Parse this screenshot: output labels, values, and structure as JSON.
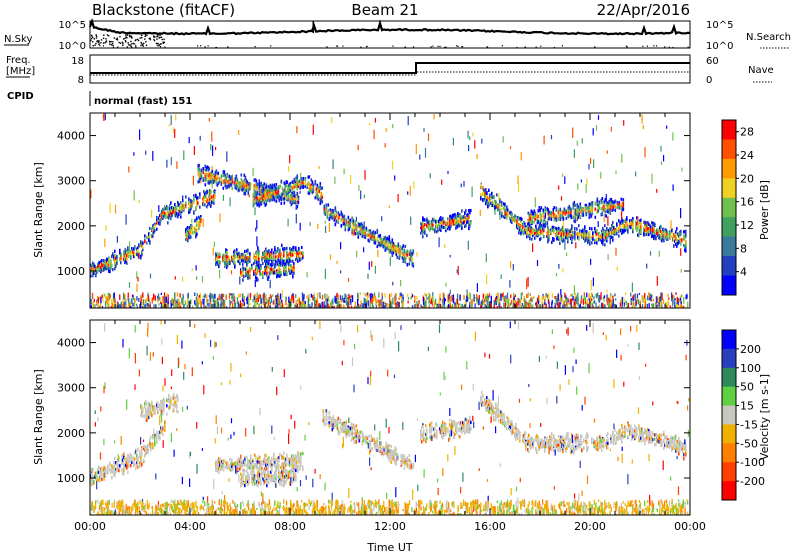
{
  "header": {
    "station": "Blackstone (fitACF)",
    "beam": "Beam 21",
    "date": "22/Apr/2016"
  },
  "top_panels": {
    "nsky_label": "N.Sky",
    "nsky_ticks": [
      "10^5",
      "10^0"
    ],
    "nsearch_label": "N.Search",
    "nsearch_ticks": [
      "10^5",
      "10^0"
    ],
    "freq_label": "Freq.",
    "freq_unit": "[MHz]",
    "freq_ticks": [
      "18",
      "8"
    ],
    "nave_label": "Nave",
    "nave_ticks": [
      "60",
      "0"
    ],
    "cpid_label": "CPID",
    "cpid_value": "normal (fast) 151"
  },
  "colors": {
    "power_scale": [
      "#0000ff",
      "#2040c0",
      "#3a7a9a",
      "#40a060",
      "#70c050",
      "#f0d020",
      "#ff9a00",
      "#ff5000",
      "#ff0000"
    ],
    "velocity_scale": [
      "#0000ff",
      "#2840c0",
      "#2e8a5a",
      "#60d040",
      "#c8c8c0",
      "#f0b000",
      "#ff8000",
      "#ff4000",
      "#ff0000"
    ],
    "ground_scatter": "#c8c8c0"
  },
  "chart_data": [
    {
      "type": "heatmap",
      "name": "power",
      "xlabel": "",
      "ylabel": "Slant Range [km]",
      "xlim": [
        "00:00",
        "24:00"
      ],
      "ylim": [
        180,
        4500
      ],
      "yticks": [
        "1000",
        "2000",
        "3000",
        "4000"
      ],
      "colorbar": {
        "label": "Power [dB]",
        "ticks": [
          "28",
          "24",
          "20",
          "16",
          "12",
          "8",
          "4"
        ],
        "range": [
          0,
          30
        ]
      },
      "echo_bands": [
        {
          "t": [
            0.0,
            2.0,
            3.0
          ],
          "range": [
            1050,
            1500,
            2400
          ]
        },
        {
          "t": [
            3.0,
            5.0
          ],
          "range": [
            2300,
            2700
          ]
        },
        {
          "t": [
            3.8,
            4.4
          ],
          "range": [
            1800,
            2100
          ]
        },
        {
          "t": [
            4.3,
            6.4,
            8.3
          ],
          "range": [
            3200,
            2900,
            2600
          ]
        },
        {
          "t": [
            5.0,
            8.5
          ],
          "range": [
            1300,
            1400
          ]
        },
        {
          "t": [
            6.0,
            8.2
          ],
          "range": [
            1000,
            1100
          ]
        },
        {
          "t": [
            6.5,
            8.6,
            9.3
          ],
          "range": [
            2600,
            3000,
            2700
          ]
        },
        {
          "t": [
            9.3,
            12.9
          ],
          "range": [
            2400,
            1300
          ]
        },
        {
          "t": [
            13.2,
            15.2
          ],
          "range": [
            2000,
            2200
          ]
        },
        {
          "t": [
            15.6,
            17.5,
            20.5,
            21.5,
            23.8
          ],
          "range": [
            2800,
            1900,
            1800,
            2100,
            1700
          ]
        },
        {
          "t": [
            17.5,
            21.3
          ],
          "range": [
            2200,
            2500
          ]
        }
      ]
    },
    {
      "type": "heatmap",
      "name": "velocity",
      "xlabel": "Time UT",
      "ylabel": "Slant Range [km]",
      "xlim": [
        "00:00",
        "24:00"
      ],
      "ylim": [
        180,
        4500
      ],
      "xticks": [
        "00:00",
        "04:00",
        "08:00",
        "12:00",
        "16:00",
        "20:00",
        "00:00"
      ],
      "yticks": [
        "1000",
        "2000",
        "3000",
        "4000"
      ],
      "colorbar": {
        "label": "Velocity [m s-1]",
        "ticks": [
          "200",
          "100",
          "50",
          "15",
          "-15",
          "-50",
          "-100",
          "-200"
        ],
        "range": [
          -250,
          250
        ]
      },
      "echo_bands": [
        {
          "t": [
            0.0,
            2.0,
            3.0
          ],
          "range": [
            1050,
            1500,
            2200
          ]
        },
        {
          "t": [
            2.0,
            3.5
          ],
          "range": [
            2500,
            2700
          ]
        },
        {
          "t": [
            5.0,
            8.5
          ],
          "range": [
            1300,
            1400
          ]
        },
        {
          "t": [
            6.0,
            8.2
          ],
          "range": [
            1000,
            1100
          ]
        },
        {
          "t": [
            9.3,
            12.9
          ],
          "range": [
            2400,
            1300
          ]
        },
        {
          "t": [
            13.2,
            15.2
          ],
          "range": [
            2000,
            2200
          ]
        },
        {
          "t": [
            15.6,
            17.5,
            20.5,
            21.5,
            23.8
          ],
          "range": [
            2800,
            1800,
            1800,
            2100,
            1700
          ]
        }
      ]
    }
  ]
}
